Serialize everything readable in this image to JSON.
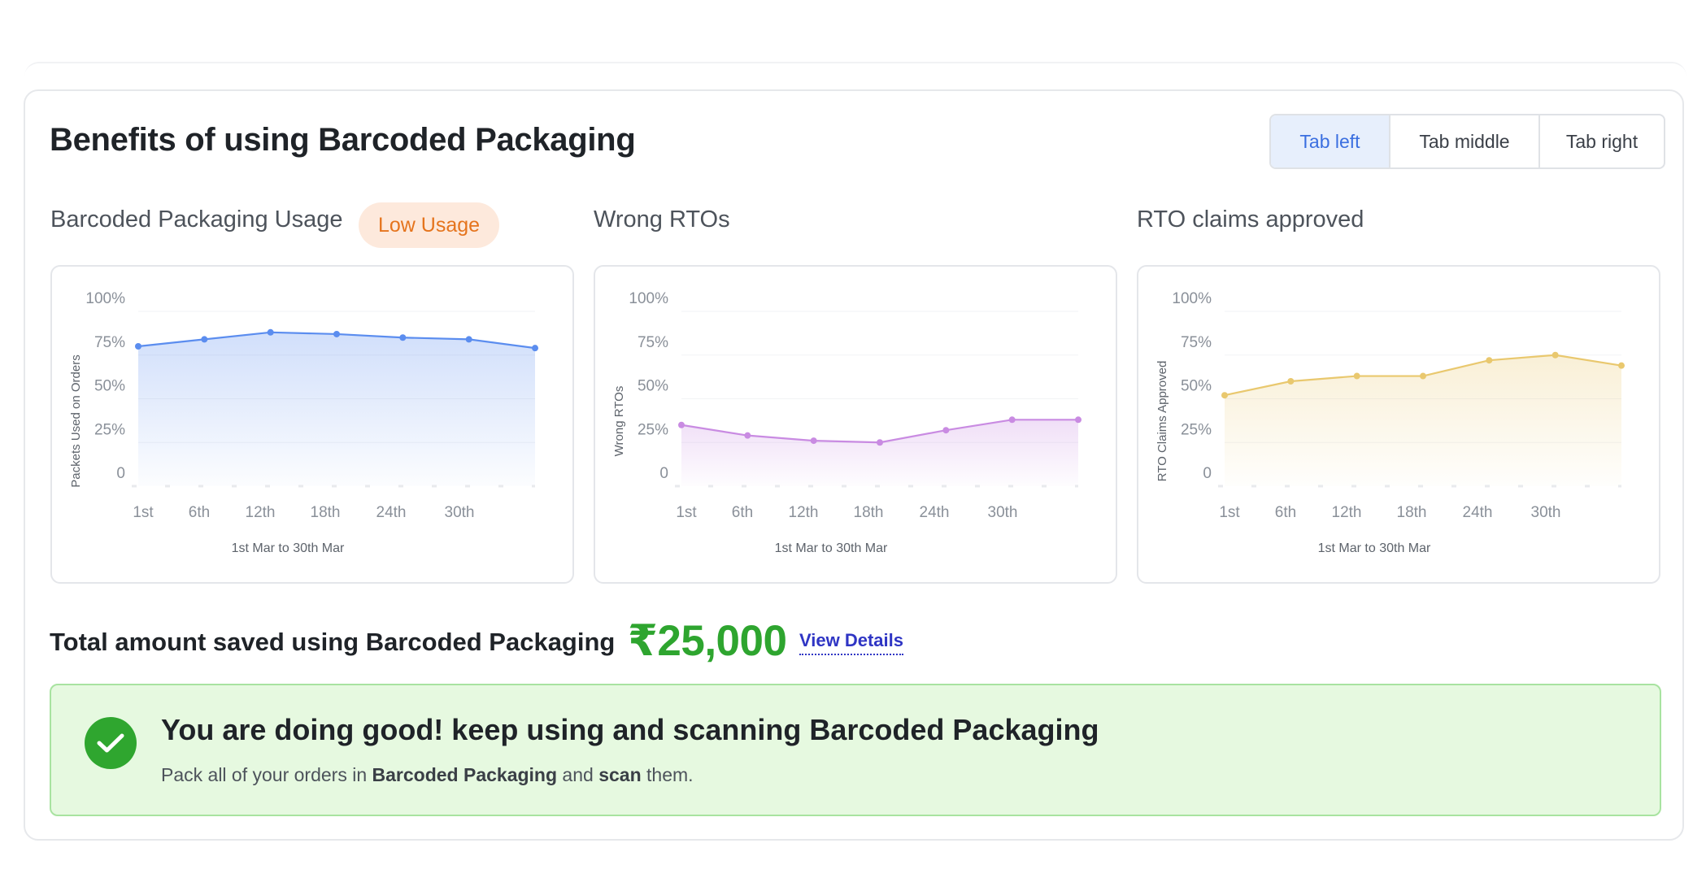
{
  "header": {
    "title": "Benefits of using Barcoded Packaging"
  },
  "tabs": [
    {
      "label": "Tab left",
      "active": true
    },
    {
      "label": "Tab middle",
      "active": false
    },
    {
      "label": "Tab right",
      "active": false
    }
  ],
  "charts": [
    {
      "title": "Barcoded Packaging Usage",
      "badge": "Low Usage",
      "color": "#5b8def"
    },
    {
      "title": "Wrong RTOs",
      "color": "#c98be2"
    },
    {
      "title": "RTO claims approved",
      "color": "#e9c86e"
    }
  ],
  "chart_data": [
    {
      "type": "area",
      "title": "Barcoded Packaging Usage",
      "ylabel": "Packets Used on Orders",
      "xlabel": "1st Mar to 30th Mar",
      "x_ticks": [
        "1st",
        "6th",
        "12th",
        "18th",
        "24th",
        "30th"
      ],
      "y_ticks": [
        "100%",
        "75%",
        "50%",
        "25%",
        "0"
      ],
      "ylim": [
        0,
        100
      ],
      "series": [
        {
          "values": [
            80,
            84,
            88,
            87,
            85,
            84,
            79
          ]
        }
      ]
    },
    {
      "type": "area",
      "title": "Wrong RTOs",
      "ylabel": "Wrong RTOs",
      "xlabel": "1st Mar to 30th Mar",
      "x_ticks": [
        "1st",
        "6th",
        "12th",
        "18th",
        "24th",
        "30th"
      ],
      "y_ticks": [
        "100%",
        "75%",
        "50%",
        "25%",
        "0"
      ],
      "ylim": [
        0,
        100
      ],
      "series": [
        {
          "values": [
            35,
            29,
            26,
            25,
            32,
            38,
            38
          ]
        }
      ]
    },
    {
      "type": "area",
      "title": "RTO claims approved",
      "ylabel": "RTO Claims Approved",
      "xlabel": "1st Mar to 30th Mar",
      "x_ticks": [
        "1st",
        "6th",
        "12th",
        "18th",
        "24th",
        "30th"
      ],
      "y_ticks": [
        "100%",
        "75%",
        "50%",
        "25%",
        "0"
      ],
      "ylim": [
        0,
        100
      ],
      "series": [
        {
          "values": [
            52,
            60,
            63,
            63,
            72,
            75,
            69
          ]
        }
      ]
    }
  ],
  "savings": {
    "label": "Total amount saved using Barcoded Packaging",
    "amount": "₹25,000",
    "link": "View Details"
  },
  "banner": {
    "title": "You are doing good! keep using and scanning Barcoded Packaging",
    "sub_prefix": "Pack all of your orders in ",
    "sub_bold1": "Barcoded Packaging",
    "sub_mid": " and ",
    "sub_bold2": "scan",
    "sub_suffix": " them."
  }
}
